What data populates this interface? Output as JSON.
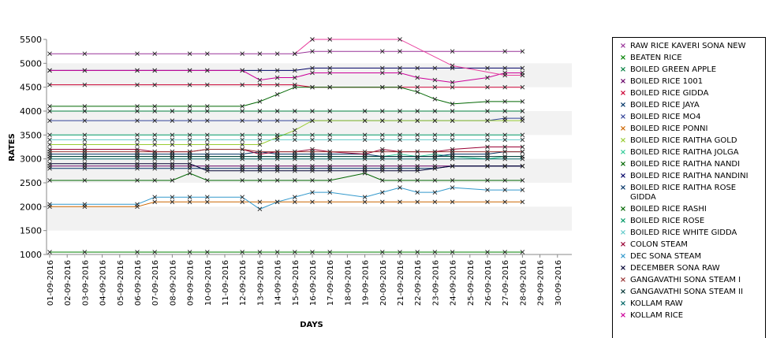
{
  "chart_data": {
    "type": "line",
    "title": "",
    "xlabel": "DAYS",
    "ylabel": "RATES",
    "ylim": [
      1000,
      5500
    ],
    "yticks": [
      "1000",
      "1500",
      "2000",
      "2500",
      "3000",
      "3500",
      "4000",
      "4500",
      "5000",
      "5500"
    ],
    "grid": "alternating horizontal bands",
    "legend_position": "right",
    "x": [
      "01-09-2016",
      "02-09-2016",
      "03-09-2016",
      "04-09-2016",
      "05-09-2016",
      "06-09-2016",
      "07-09-2016",
      "08-09-2016",
      "09-09-2016",
      "10-09-2016",
      "11-09-2016",
      "12-09-2016",
      "13-09-2016",
      "14-09-2016",
      "15-09-2016",
      "16-09-2016",
      "17-09-2016",
      "18-09-2016",
      "19-09-2016",
      "20-09-2016",
      "21-09-2016",
      "22-09-2016",
      "23-09-2016",
      "24-09-2016",
      "25-09-2016",
      "26-09-2016",
      "27-09-2016",
      "28-09-2016",
      "29-09-2016",
      "30-09-2016"
    ],
    "series": [
      {
        "name": " RAW RICE KAVERI SONA NEW",
        "color": "#993399",
        "values": [
          5200,
          null,
          5200,
          null,
          null,
          5200,
          5200,
          null,
          5200,
          5200,
          null,
          5200,
          5200,
          5200,
          5200,
          5250,
          5250,
          null,
          null,
          5250,
          5250,
          null,
          null,
          5250,
          null,
          null,
          5250,
          5250,
          null,
          null
        ]
      },
      {
        "name": "BEATEN RICE",
        "color": "#008000",
        "values": [
          1050,
          null,
          1050,
          null,
          null,
          1050,
          1050,
          null,
          1050,
          1050,
          null,
          1050,
          1050,
          1050,
          1050,
          1050,
          1050,
          null,
          null,
          1050,
          1050,
          1050,
          1050,
          1050,
          null,
          1050,
          1050,
          1050,
          null,
          null
        ]
      },
      {
        "name": "BOILED GREEN APPLE",
        "color": "#007f3f",
        "values": [
          4000,
          null,
          4000,
          null,
          null,
          4000,
          4000,
          4000,
          4000,
          4000,
          null,
          4000,
          4000,
          4000,
          4000,
          4000,
          4000,
          null,
          4000,
          4000,
          4000,
          4000,
          4000,
          4000,
          null,
          4000,
          4000,
          4000,
          null,
          null
        ]
      },
      {
        "name": "BOILED RICE 1001",
        "color": "#660066",
        "values": [
          2850,
          null,
          2850,
          null,
          null,
          2850,
          2850,
          2850,
          2850,
          2850,
          null,
          2850,
          2850,
          2850,
          2850,
          2850,
          2850,
          null,
          2850,
          2850,
          2850,
          2850,
          2850,
          2850,
          null,
          2850,
          2850,
          2850,
          null,
          null
        ]
      },
      {
        "name": "BOILED RICE GIDDA",
        "color": "#cc0033",
        "values": [
          4550,
          null,
          4550,
          null,
          null,
          4550,
          4550,
          null,
          4550,
          4550,
          null,
          4550,
          4550,
          4550,
          4550,
          4500,
          4500,
          null,
          null,
          4500,
          4500,
          4500,
          4500,
          4500,
          null,
          4500,
          4500,
          4500,
          null,
          null
        ]
      },
      {
        "name": "BOILED RICE JAYA",
        "color": "#003366",
        "values": [
          2800,
          null,
          2800,
          null,
          null,
          2800,
          2800,
          2800,
          2800,
          2800,
          null,
          2800,
          2800,
          2800,
          2800,
          2800,
          2800,
          null,
          2800,
          2800,
          2800,
          2800,
          2800,
          2850,
          null,
          2850,
          2850,
          2850,
          null,
          null
        ]
      },
      {
        "name": "BOILED RICE MO4",
        "color": "#334499",
        "values": [
          3800,
          null,
          3800,
          null,
          null,
          3800,
          3800,
          3800,
          3800,
          3800,
          null,
          3800,
          3800,
          3800,
          3800,
          3800,
          3800,
          null,
          3800,
          3800,
          3800,
          3800,
          3800,
          3800,
          null,
          3800,
          3850,
          3850,
          null,
          null
        ]
      },
      {
        "name": "BOILED RICE PONNI",
        "color": "#cc6600",
        "values": [
          2000,
          null,
          2000,
          null,
          null,
          2000,
          2100,
          2100,
          2100,
          2100,
          null,
          2100,
          2100,
          2100,
          2100,
          2100,
          2100,
          null,
          2100,
          2100,
          2100,
          2100,
          2100,
          2100,
          null,
          2100,
          2100,
          2100,
          null,
          null
        ]
      },
      {
        "name": "BOILED RICE RAITHA GOLD",
        "color": "#99cc33",
        "values": [
          3300,
          null,
          3300,
          null,
          null,
          3300,
          3300,
          3300,
          3300,
          3300,
          null,
          3300,
          3300,
          3450,
          3600,
          3800,
          3800,
          null,
          3800,
          3800,
          3800,
          3800,
          3800,
          3800,
          null,
          3800,
          3800,
          3800,
          null,
          null
        ]
      },
      {
        "name": "BOILED RICE RAITHA JOLGA",
        "color": "#33cc99",
        "values": [
          3050,
          null,
          3050,
          null,
          null,
          3050,
          3050,
          3050,
          3050,
          3050,
          null,
          3050,
          3050,
          3050,
          3050,
          3050,
          3050,
          null,
          3050,
          3050,
          3100,
          3050,
          3100,
          3050,
          null,
          3000,
          3050,
          3050,
          null,
          null
        ]
      },
      {
        "name": "BOILED RICE RAITHA NANDI",
        "color": "#006600",
        "values": [
          4100,
          null,
          4100,
          null,
          null,
          4100,
          4100,
          null,
          4100,
          4100,
          null,
          4100,
          4200,
          4350,
          4500,
          4500,
          4500,
          null,
          null,
          4500,
          4500,
          4400,
          4250,
          4150,
          null,
          4200,
          4200,
          4200,
          null,
          null
        ]
      },
      {
        "name": "BOILED RICE RAITHA NANDINI",
        "color": "#000066",
        "values": [
          4850,
          null,
          4850,
          null,
          null,
          4850,
          4850,
          null,
          4850,
          4850,
          null,
          4850,
          4850,
          4850,
          4850,
          4900,
          4900,
          null,
          null,
          4900,
          4900,
          4900,
          4900,
          4900,
          null,
          4900,
          4900,
          4900,
          null,
          null
        ]
      },
      {
        "name": "BOILED RICE RAITHA ROSE GIDDA",
        "color": "#003366",
        "values": [
          3100,
          null,
          3100,
          null,
          null,
          3100,
          3100,
          3100,
          3100,
          3100,
          null,
          3100,
          3150,
          3100,
          3100,
          3100,
          3100,
          null,
          3100,
          3050,
          3050,
          3050,
          3050,
          3100,
          null,
          3100,
          3150,
          3150,
          null,
          null
        ]
      },
      {
        "name": "BOILED RICE RASHI",
        "color": "#006600",
        "values": [
          2550,
          null,
          2550,
          null,
          null,
          2550,
          2550,
          2550,
          2700,
          2550,
          null,
          2550,
          2550,
          2550,
          2550,
          2550,
          2550,
          null,
          2700,
          2550,
          2550,
          2550,
          2550,
          2550,
          null,
          2550,
          2550,
          2550,
          null,
          null
        ]
      },
      {
        "name": "BOILED RICE ROSE",
        "color": "#009966",
        "values": [
          3500,
          null,
          3500,
          null,
          null,
          3500,
          3500,
          3500,
          3500,
          3500,
          null,
          3500,
          3500,
          3500,
          3500,
          3500,
          3500,
          null,
          3500,
          3500,
          3500,
          3500,
          3500,
          3500,
          null,
          3500,
          3500,
          3500,
          null,
          null
        ]
      },
      {
        "name": "BOILED RICE WHITE GIDDA",
        "color": "#66cccc",
        "values": [
          3400,
          null,
          3400,
          null,
          null,
          3400,
          3400,
          3400,
          3400,
          3400,
          null,
          3400,
          3400,
          3400,
          3400,
          3400,
          3400,
          null,
          3400,
          3400,
          3400,
          3400,
          3400,
          3400,
          null,
          3400,
          3400,
          3400,
          null,
          null
        ]
      },
      {
        "name": "COLON STEAM",
        "color": "#990033",
        "values": [
          3200,
          null,
          3200,
          null,
          null,
          3200,
          3150,
          3150,
          3150,
          3200,
          null,
          3200,
          3100,
          3150,
          3150,
          3200,
          3150,
          null,
          3100,
          3200,
          3150,
          3150,
          3150,
          3200,
          null,
          3250,
          3250,
          3250,
          null,
          null
        ]
      },
      {
        "name": "DEC SONA STEAM",
        "color": "#3399cc",
        "values": [
          2050,
          null,
          2050,
          null,
          null,
          2050,
          2200,
          2200,
          2200,
          2200,
          null,
          2200,
          1950,
          2100,
          2200,
          2300,
          2300,
          null,
          2200,
          2300,
          2400,
          2300,
          2300,
          2400,
          null,
          2350,
          2350,
          2350,
          null,
          null
        ]
      },
      {
        "name": "DECEMBER SONA RAW",
        "color": "#000033",
        "values": [
          2900,
          null,
          2900,
          null,
          null,
          2900,
          2900,
          2900,
          2900,
          2750,
          null,
          2750,
          2750,
          2750,
          2750,
          2750,
          2750,
          null,
          2750,
          2750,
          2750,
          2750,
          2800,
          2850,
          null,
          2850,
          2850,
          2850,
          null,
          null
        ]
      },
      {
        "name": "GANGAVATHI SONA STEAM I",
        "color": "#993333",
        "values": [
          3150,
          null,
          3150,
          null,
          null,
          3150,
          3150,
          3150,
          3150,
          3200,
          null,
          3200,
          3150,
          3150,
          3150,
          3150,
          3150,
          null,
          3150,
          3150,
          3150,
          3150,
          3150,
          3150,
          null,
          3150,
          3150,
          3150,
          null,
          null
        ]
      },
      {
        "name": "GANGAVATHI SONA STEAM II",
        "color": "#003333",
        "values": [
          3050,
          null,
          3050,
          null,
          null,
          3050,
          3050,
          3050,
          3050,
          3050,
          null,
          3050,
          3050,
          3050,
          3050,
          3050,
          3050,
          null,
          3050,
          3050,
          3050,
          3050,
          3050,
          3050,
          null,
          3050,
          3050,
          3050,
          null,
          null
        ]
      },
      {
        "name": "KOLLAM RAW",
        "color": "#006666",
        "values": [
          3000,
          null,
          3000,
          null,
          null,
          3000,
          3000,
          3000,
          3000,
          3000,
          null,
          3000,
          3000,
          3000,
          3000,
          3000,
          3000,
          null,
          3000,
          3000,
          3000,
          3000,
          3000,
          3000,
          null,
          3000,
          3000,
          3000,
          null,
          null
        ]
      },
      {
        "name": "KOLLAM RICE",
        "color": "#cc0099",
        "values": [
          4850,
          null,
          4850,
          null,
          null,
          4850,
          4850,
          null,
          4850,
          4850,
          null,
          4850,
          4650,
          4700,
          4700,
          4800,
          4800,
          null,
          null,
          4800,
          4800,
          4700,
          4650,
          4600,
          null,
          4700,
          4800,
          4800,
          null,
          null
        ]
      },
      {
        "name": "",
        "color": "#e83c9c",
        "values": [
          null,
          null,
          null,
          null,
          null,
          null,
          null,
          null,
          null,
          null,
          null,
          null,
          null,
          null,
          5200,
          5500,
          5500,
          null,
          null,
          null,
          5500,
          null,
          null,
          4950,
          null,
          null,
          4750,
          4750,
          null,
          null
        ]
      }
    ]
  }
}
